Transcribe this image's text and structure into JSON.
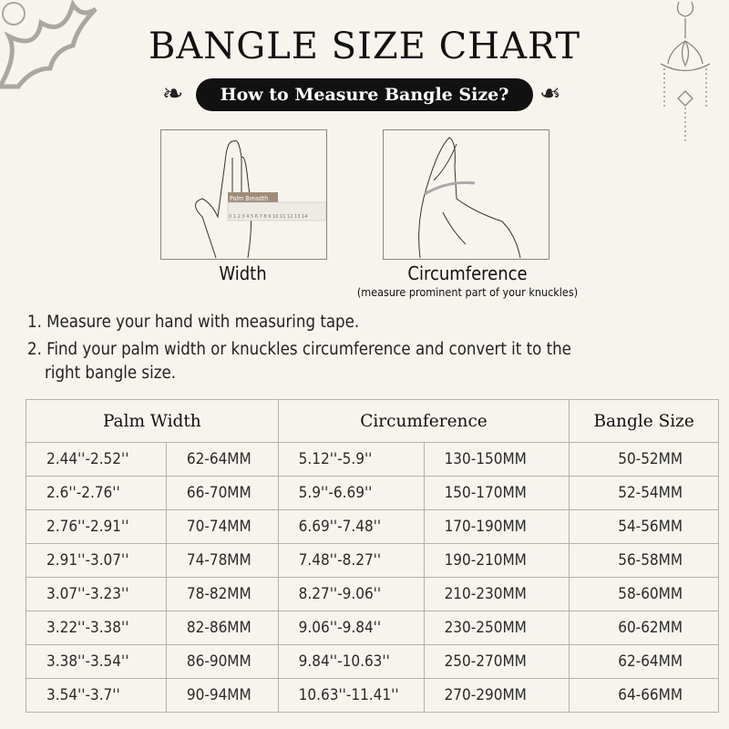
{
  "header": {
    "title": "BANGLE SIZE CHART",
    "subtitle": "How to Measure Bangle Size?"
  },
  "figures": [
    {
      "caption": "Width",
      "ruler_label": "Palm Breadth",
      "ruler_ticks": "0 1 2 3 4 5 6 7 8 9 10 11 12 13 14"
    },
    {
      "caption": "Circumference",
      "note": "(measure prominent part of your knuckles)"
    }
  ],
  "instructions": [
    "1. Measure your hand with measuring tape.",
    "2. Find your palm width or knuckles circumference and convert it to the",
    "right bangle size."
  ],
  "table": {
    "headers": [
      "Palm Width",
      "Circumference",
      "Bangle Size"
    ],
    "rows": [
      [
        "2.44''-2.52''",
        "62-64MM",
        "5.12''-5.9''",
        "130-150MM",
        "50-52MM"
      ],
      [
        "2.6''-2.76''",
        "66-70MM",
        "5.9''-6.69''",
        "150-170MM",
        "52-54MM"
      ],
      [
        "2.76''-2.91''",
        "70-74MM",
        "6.69''-7.48''",
        "170-190MM",
        "54-56MM"
      ],
      [
        "2.91''-3.07''",
        "74-78MM",
        "7.48''-8.27''",
        "190-210MM",
        "56-58MM"
      ],
      [
        "3.07''-3.23''",
        "78-82MM",
        "8.27''-9.06''",
        "210-230MM",
        "58-60MM"
      ],
      [
        "3.22''-3.38''",
        "82-86MM",
        "9.06''-9.84''",
        "230-250MM",
        "60-62MM"
      ],
      [
        "3.38''-3.54''",
        "86-90MM",
        "9.84''-10.63''",
        "250-270MM",
        "62-64MM"
      ],
      [
        "3.54''-3.7''",
        "90-94MM",
        "10.63''-11.41''",
        "270-290MM",
        "64-66MM"
      ]
    ]
  },
  "colors": {
    "background": "#f7f4ed",
    "pill": "#111111",
    "ruler_label": "#a08c78",
    "ornament": "#a8a4a0"
  }
}
